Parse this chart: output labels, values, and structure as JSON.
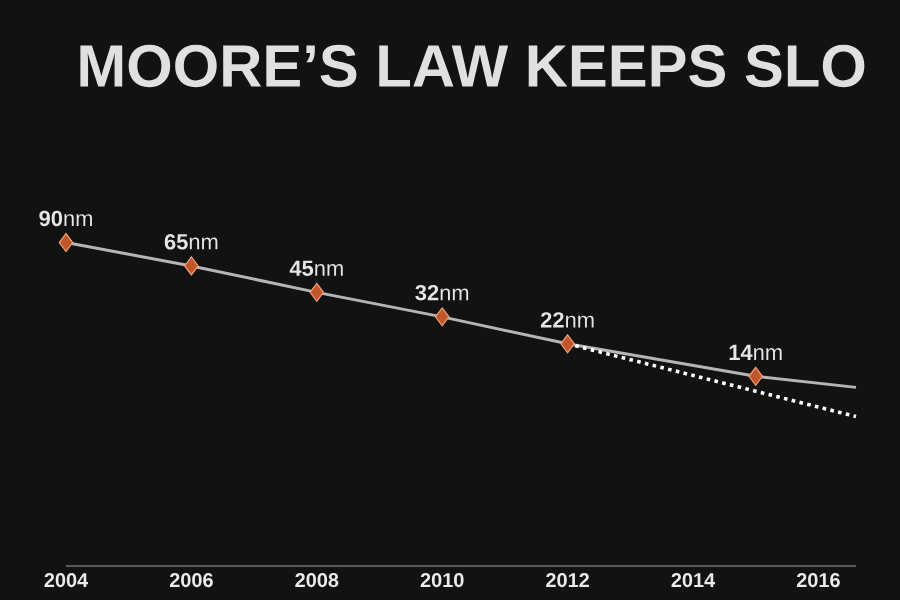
{
  "chart_data": {
    "type": "line",
    "title": "MOORE’S LAW KEEPS SLO",
    "log": "y",
    "tick_labels": "x",
    "xlim": [
      2004,
      2016.6
    ],
    "xticks": [
      2004,
      2006,
      2008,
      2010,
      2012,
      2014,
      2016
    ],
    "series": [
      {
        "x": [
          2004,
          2006,
          2008,
          2010,
          2012,
          2015
        ],
        "values": [
          90,
          65,
          45,
          32,
          22,
          14
        ],
        "color": "#b5b5b5",
        "colors": [
          "#c0562a",
          "#c0562a",
          "#c0562a",
          "#c0562a",
          "#c0562a",
          "#c0562a"
        ],
        "marker": "diamond",
        "line_style": "solid",
        "value_labels": [
          "**90**nm",
          "**65**nm",
          "**45**nm",
          "**32**nm",
          "**22**nm",
          "**14**nm"
        ]
      },
      {
        "x": [
          2015,
          2016.6
        ],
        "values": [
          14,
          12
        ],
        "color": "#b5b5b5",
        "marker": "none",
        "line_style": "solid"
      },
      {
        "x": [
          2012,
          2016.6
        ],
        "values": [
          22,
          8
        ],
        "color": "#ffffff",
        "marker": "none",
        "line_style": "dotted"
      }
    ]
  }
}
